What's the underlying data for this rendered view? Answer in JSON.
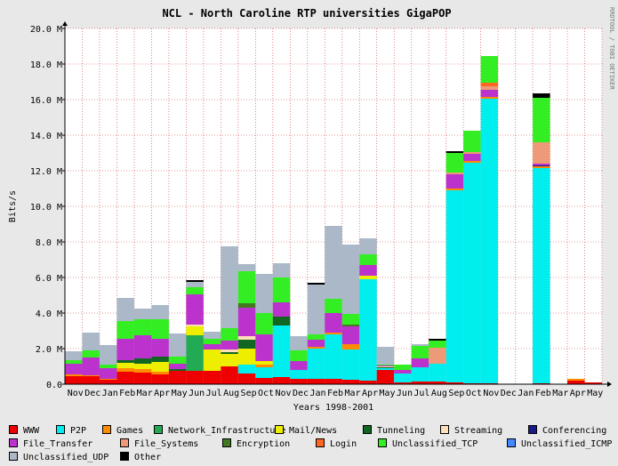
{
  "chart_data": {
    "type": "bar",
    "stacked": true,
    "title": "NCL - North Caroline RTP universities GigaPOP",
    "ylabel": "Bits/s",
    "xlabel": "Years 1998-2001",
    "watermark": "RRDTOOL / TOBI OETIKER",
    "ylim": [
      0,
      20000000
    ],
    "yticks": [
      0,
      2000000,
      4000000,
      6000000,
      8000000,
      10000000,
      12000000,
      14000000,
      16000000,
      18000000,
      20000000
    ],
    "ytick_labels": [
      "0.0",
      "2.0 M",
      "4.0 M",
      "6.0 M",
      "8.0 M",
      "10.0 M",
      "12.0 M",
      "14.0 M",
      "16.0 M",
      "18.0 M",
      "20.0 M"
    ],
    "grid": true,
    "legend_position": "bottom",
    "categories": [
      "Nov",
      "Dec",
      "Jan",
      "Feb",
      "Mar",
      "Apr",
      "May",
      "Jun",
      "Jul",
      "Aug",
      "Sep",
      "Oct",
      "Nov",
      "Dec",
      "Jan",
      "Feb",
      "Mar",
      "Apr",
      "May",
      "Jun",
      "Jul",
      "Aug",
      "Sep",
      "Oct",
      "Nov",
      "Dec",
      "Jan",
      "Feb",
      "Mar",
      "Apr",
      "May"
    ],
    "series": [
      {
        "name": "WWW",
        "color": "#ee0000",
        "values": [
          0.45,
          0.45,
          0.25,
          0.7,
          0.65,
          0.55,
          0.75,
          0.75,
          0.75,
          1.0,
          0.6,
          0.35,
          0.4,
          0.3,
          0.3,
          0.3,
          0.25,
          0.2,
          0.8,
          0.1,
          0.15,
          0.15,
          0.1,
          0.05,
          0.05,
          0.0,
          0.0,
          0.05,
          0.0,
          0.2,
          0.1
        ]
      },
      {
        "name": "P2P",
        "color": "#00eeee",
        "values": [
          0.0,
          0.0,
          0.0,
          0.0,
          0.0,
          0.0,
          0.0,
          0.0,
          0.0,
          0.0,
          0.5,
          0.6,
          2.9,
          0.5,
          1.7,
          2.5,
          1.7,
          5.7,
          0.1,
          0.5,
          0.8,
          1.0,
          10.8,
          12.4,
          16.0,
          0.0,
          0.0,
          12.1,
          0.0,
          0.0,
          0.0
        ]
      },
      {
        "name": "Games",
        "color": "#ff8c00",
        "values": [
          0.1,
          0.05,
          0.05,
          0.2,
          0.2,
          0.15,
          0.0,
          0.0,
          0.0,
          0.0,
          0.0,
          0.15,
          0.0,
          0.0,
          0.1,
          0.1,
          0.3,
          0.0,
          0.0,
          0.0,
          0.0,
          0.0,
          0.1,
          0.1,
          0.1,
          0.0,
          0.0,
          0.1,
          0.0,
          0.1,
          0.0
        ]
      },
      {
        "name": "Network_Infrastructure",
        "color": "#22aa55",
        "values": [
          0.0,
          0.0,
          0.0,
          0.0,
          0.0,
          0.0,
          0.0,
          2.0,
          0.0,
          0.0,
          0.0,
          0.0,
          0.0,
          0.0,
          0.0,
          0.0,
          0.0,
          0.0,
          0.0,
          0.0,
          0.0,
          0.0,
          0.0,
          0.0,
          0.0,
          0.0,
          0.0,
          0.0,
          0.0,
          0.0,
          0.0
        ]
      },
      {
        "name": "Mail/News",
        "color": "#eeee00",
        "values": [
          0.0,
          0.0,
          0.0,
          0.3,
          0.3,
          0.55,
          0.0,
          0.5,
          1.2,
          0.7,
          0.9,
          0.2,
          0.0,
          0.0,
          0.0,
          0.0,
          0.0,
          0.2,
          0.0,
          0.0,
          0.0,
          0.0,
          0.0,
          0.0,
          0.0,
          0.0,
          0.0,
          0.0,
          0.0,
          0.0,
          0.0
        ]
      },
      {
        "name": "Tunneling",
        "color": "#116622",
        "values": [
          0.0,
          0.0,
          0.0,
          0.15,
          0.3,
          0.3,
          0.1,
          0.0,
          0.0,
          0.1,
          0.5,
          0.0,
          0.5,
          0.0,
          0.0,
          0.0,
          0.0,
          0.0,
          0.05,
          0.0,
          0.0,
          0.0,
          0.0,
          0.0,
          0.0,
          0.0,
          0.0,
          0.0,
          0.0,
          0.0,
          0.0
        ]
      },
      {
        "name": "Streaming",
        "color": "#ffe0b8",
        "values": [
          0.0,
          0.0,
          0.0,
          0.0,
          0.0,
          0.0,
          0.0,
          0.1,
          0.0,
          0.15,
          0.2,
          0.0,
          0.0,
          0.0,
          0.0,
          0.0,
          0.0,
          0.0,
          0.05,
          0.0,
          0.0,
          0.0,
          0.0,
          0.0,
          0.0,
          0.0,
          0.0,
          0.0,
          0.0,
          0.0,
          0.0
        ]
      },
      {
        "name": "Conferencing",
        "color": "#1a1a88",
        "values": [
          0.0,
          0.0,
          0.0,
          0.0,
          0.0,
          0.0,
          0.0,
          0.0,
          0.0,
          0.0,
          0.0,
          0.0,
          0.0,
          0.0,
          0.0,
          0.0,
          0.0,
          0.0,
          0.0,
          0.0,
          0.0,
          0.0,
          0.0,
          0.0,
          0.0,
          0.0,
          0.0,
          0.05,
          0.0,
          0.0,
          0.0
        ]
      },
      {
        "name": "File_Transfer",
        "color": "#bb33cc",
        "values": [
          0.6,
          1.0,
          0.6,
          1.2,
          1.3,
          1.0,
          0.3,
          1.7,
          0.3,
          0.5,
          1.6,
          1.5,
          0.8,
          0.5,
          0.4,
          1.1,
          1.0,
          0.6,
          0.05,
          0.2,
          0.5,
          0.0,
          0.8,
          0.4,
          0.4,
          0.0,
          0.0,
          0.1,
          0.0,
          0.0,
          0.0
        ]
      },
      {
        "name": "File_Systems",
        "color": "#ee9977",
        "values": [
          0.0,
          0.0,
          0.0,
          0.0,
          0.0,
          0.0,
          0.0,
          0.0,
          0.0,
          0.0,
          0.0,
          0.0,
          0.0,
          0.0,
          0.0,
          0.0,
          0.0,
          0.0,
          0.0,
          0.0,
          0.0,
          0.9,
          0.1,
          0.1,
          0.2,
          0.0,
          0.0,
          1.2,
          0.0,
          0.0,
          0.0
        ]
      },
      {
        "name": "Encryption",
        "color": "#447722",
        "values": [
          0.0,
          0.0,
          0.0,
          0.0,
          0.0,
          0.0,
          0.0,
          0.0,
          0.0,
          0.0,
          0.25,
          0.0,
          0.0,
          0.0,
          0.0,
          0.0,
          0.1,
          0.0,
          0.0,
          0.0,
          0.0,
          0.0,
          0.0,
          0.0,
          0.0,
          0.0,
          0.0,
          0.0,
          0.0,
          0.0,
          0.0
        ]
      },
      {
        "name": "Login",
        "color": "#ff6622",
        "values": [
          0.0,
          0.0,
          0.0,
          0.0,
          0.0,
          0.0,
          0.0,
          0.0,
          0.0,
          0.0,
          0.0,
          0.0,
          0.0,
          0.0,
          0.0,
          0.0,
          0.0,
          0.0,
          0.0,
          0.0,
          0.0,
          0.0,
          0.0,
          0.0,
          0.2,
          0.0,
          0.0,
          0.0,
          0.0,
          0.0,
          0.0
        ]
      },
      {
        "name": "Unclassified_TCP",
        "color": "#33ee22",
        "values": [
          0.2,
          0.4,
          0.2,
          1.0,
          0.9,
          1.1,
          0.4,
          0.4,
          0.3,
          0.7,
          1.8,
          1.2,
          1.4,
          0.6,
          0.3,
          0.8,
          0.6,
          0.6,
          0.05,
          0.3,
          0.7,
          0.4,
          1.1,
          1.2,
          1.5,
          0.0,
          0.0,
          2.5,
          0.0,
          0.0,
          0.0
        ]
      },
      {
        "name": "Unclassified_ICMP",
        "color": "#4488ff",
        "values": [
          0.0,
          0.0,
          0.0,
          0.0,
          0.0,
          0.0,
          0.0,
          0.0,
          0.0,
          0.0,
          0.0,
          0.0,
          0.0,
          0.0,
          0.0,
          0.0,
          0.0,
          0.0,
          0.0,
          0.0,
          0.0,
          0.0,
          0.0,
          0.0,
          0.0,
          0.0,
          0.0,
          0.0,
          0.0,
          0.0,
          0.0
        ]
      },
      {
        "name": "Unclassified_UDP",
        "color": "#aab8c8",
        "values": [
          0.5,
          1.0,
          1.1,
          1.3,
          0.6,
          0.8,
          1.3,
          0.3,
          0.4,
          4.6,
          0.4,
          2.2,
          0.8,
          0.8,
          2.8,
          4.1,
          3.9,
          0.9,
          1.0,
          0.0,
          0.1,
          0.0,
          0.0,
          0.0,
          0.0,
          0.0,
          0.0,
          0.0,
          0.0,
          0.0,
          0.0
        ]
      },
      {
        "name": "Other",
        "color": "#000000",
        "values": [
          0.0,
          0.0,
          0.0,
          0.0,
          0.0,
          0.0,
          0.0,
          0.1,
          0.0,
          0.0,
          0.0,
          0.0,
          0.0,
          0.0,
          0.1,
          0.0,
          0.0,
          0.0,
          0.0,
          0.0,
          0.0,
          0.1,
          0.1,
          0.0,
          0.0,
          0.0,
          0.0,
          0.25,
          0.0,
          0.0,
          0.0
        ]
      }
    ]
  }
}
